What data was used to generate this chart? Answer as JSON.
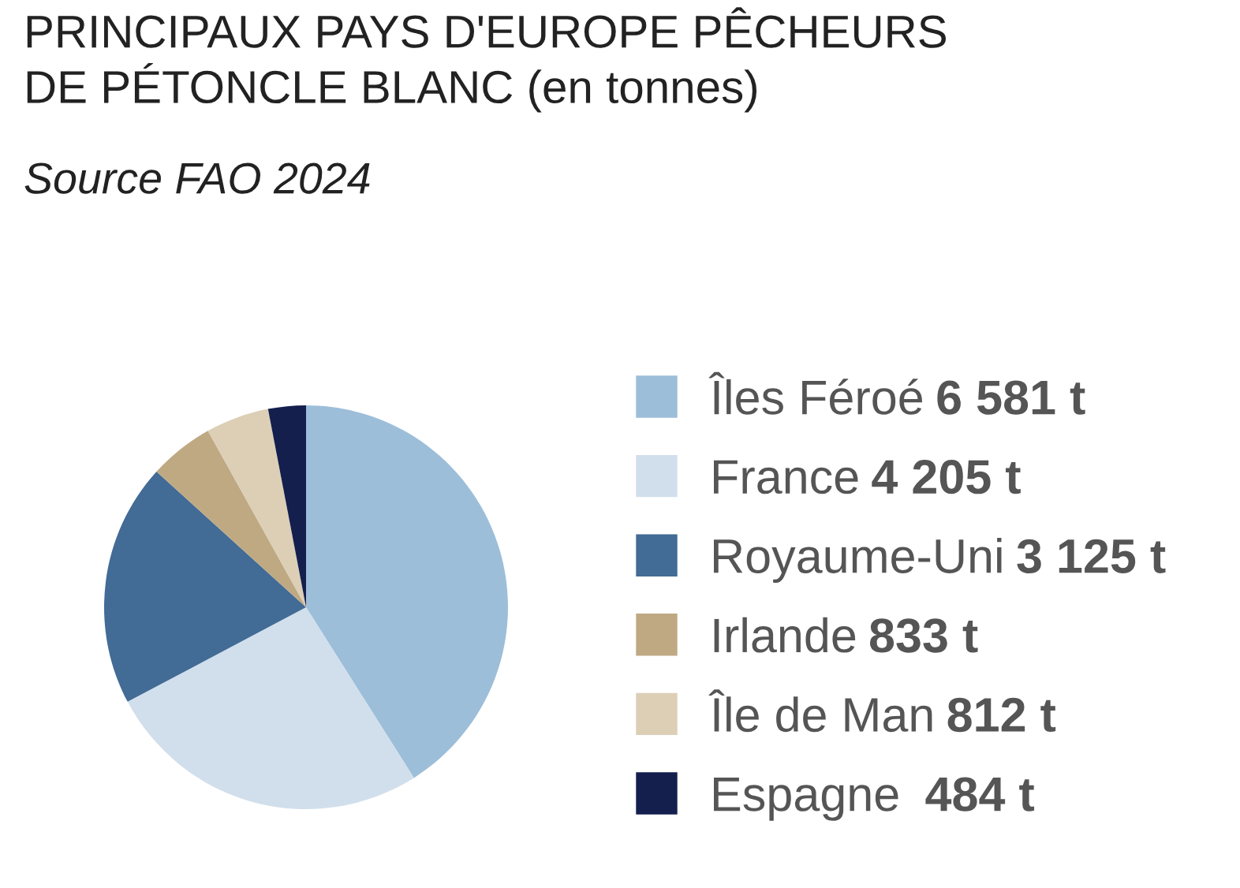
{
  "chart_data": {
    "type": "pie",
    "title": "PRINCIPAUX PAYS D'EUROPE PÊCHEURS\nDE PÉTONCLE BLANC (en tonnes)",
    "subtitle": "Source FAO 2024",
    "categories": [
      "Îles Féroé",
      "France",
      "Royaume-Uni",
      "Irlande",
      "Île de Man",
      "Espagne "
    ],
    "values": [
      6581,
      4205,
      3125,
      833,
      812,
      484
    ],
    "value_labels": [
      "6 581 t",
      "4 205 t",
      "3 125 t",
      "833 t",
      "812 t",
      "484 t"
    ],
    "colors": [
      "#9dbed9",
      "#d1dfec",
      "#426b96",
      "#bfa983",
      "#dccfb6",
      "#141f4d"
    ],
    "legend": "right"
  }
}
